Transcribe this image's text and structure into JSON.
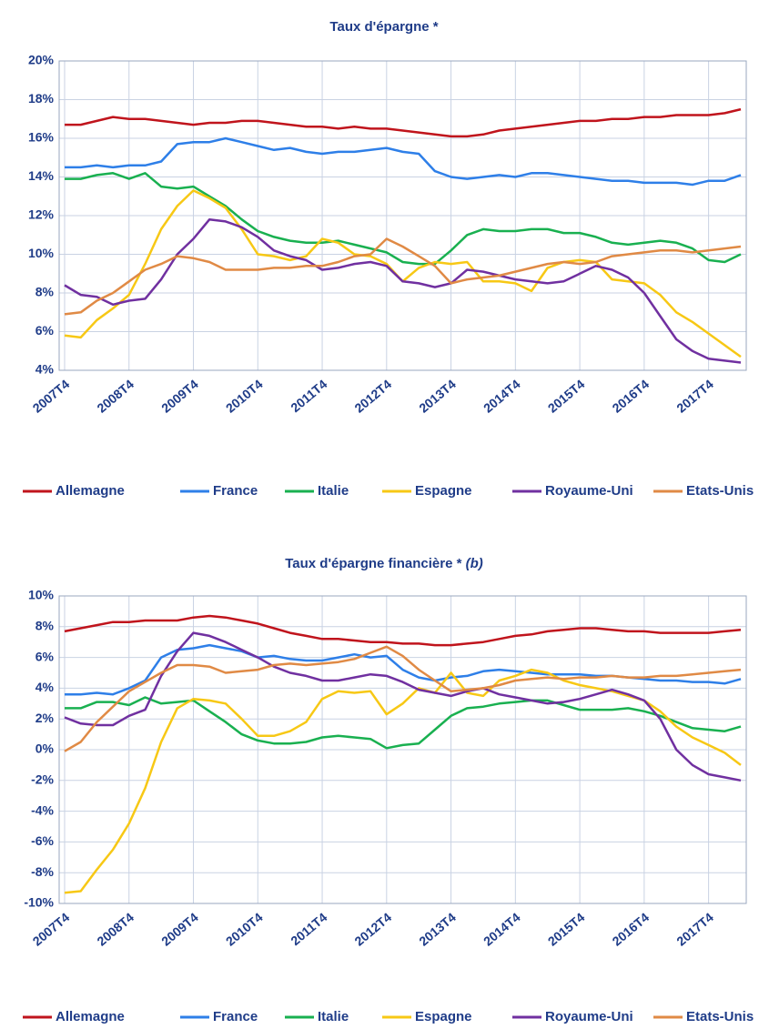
{
  "chart_data": [
    {
      "type": "line",
      "title": "Taux d'épargne *",
      "categories": [
        "2007T4",
        null,
        null,
        null,
        "2008T4",
        null,
        null,
        null,
        "2009T4",
        null,
        null,
        null,
        "2010T4",
        null,
        null,
        null,
        "2011T4",
        null,
        null,
        null,
        "2012T4",
        null,
        null,
        null,
        "2013T4",
        null,
        null,
        null,
        "2014T4",
        null,
        null,
        null,
        "2015T4",
        null,
        null,
        null,
        "2016T4",
        null,
        null,
        null,
        "2017T4",
        null,
        null
      ],
      "ylim": [
        4,
        20
      ],
      "yticks": [
        {
          "value": 4,
          "label": "4%"
        },
        {
          "value": 6,
          "label": "6%"
        },
        {
          "value": 8,
          "label": "8%"
        },
        {
          "value": 10,
          "label": "10%"
        },
        {
          "value": 12,
          "label": "12%"
        },
        {
          "value": 14,
          "label": "14%"
        },
        {
          "value": 16,
          "label": "16%"
        },
        {
          "value": 18,
          "label": "18%"
        },
        {
          "value": 20,
          "label": "20%"
        }
      ],
      "grid": true,
      "series": [
        {
          "name": "Allemagne",
          "color": "#c0141c",
          "values": [
            16.7,
            16.7,
            16.9,
            17.1,
            17.0,
            17.0,
            16.9,
            16.8,
            16.7,
            16.8,
            16.8,
            16.9,
            16.9,
            16.8,
            16.7,
            16.6,
            16.6,
            16.5,
            16.6,
            16.5,
            16.5,
            16.4,
            16.3,
            16.2,
            16.1,
            16.1,
            16.2,
            16.4,
            16.5,
            16.6,
            16.7,
            16.8,
            16.9,
            16.9,
            17.0,
            17.0,
            17.1,
            17.1,
            17.2,
            17.2,
            17.2,
            17.3,
            17.5
          ]
        },
        {
          "name": "France",
          "color": "#2e7fe8",
          "values": [
            14.5,
            14.5,
            14.6,
            14.5,
            14.6,
            14.6,
            14.8,
            15.7,
            15.8,
            15.8,
            16.0,
            15.8,
            15.6,
            15.4,
            15.5,
            15.3,
            15.2,
            15.3,
            15.3,
            15.4,
            15.5,
            15.3,
            15.2,
            14.3,
            14.0,
            13.9,
            14.0,
            14.1,
            14.0,
            14.2,
            14.2,
            14.1,
            14.0,
            13.9,
            13.8,
            13.8,
            13.7,
            13.7,
            13.7,
            13.6,
            13.8,
            13.8,
            14.1
          ]
        },
        {
          "name": "Italie",
          "color": "#19b050",
          "values": [
            13.9,
            13.9,
            14.1,
            14.2,
            13.9,
            14.2,
            13.5,
            13.4,
            13.5,
            13.0,
            12.5,
            11.8,
            11.2,
            10.9,
            10.7,
            10.6,
            10.6,
            10.7,
            10.5,
            10.3,
            10.1,
            9.6,
            9.5,
            9.5,
            10.2,
            11.0,
            11.3,
            11.2,
            11.2,
            11.3,
            11.3,
            11.1,
            11.1,
            10.9,
            10.6,
            10.5,
            10.6,
            10.7,
            10.6,
            10.3,
            9.7,
            9.6,
            10.0
          ]
        },
        {
          "name": "Espagne",
          "color": "#f7c815",
          "values": [
            5.8,
            5.7,
            6.6,
            7.2,
            7.9,
            9.5,
            11.3,
            12.5,
            13.3,
            12.9,
            12.4,
            11.3,
            10.0,
            9.9,
            9.7,
            9.9,
            10.8,
            10.6,
            10.0,
            9.9,
            9.5,
            8.6,
            9.3,
            9.6,
            9.5,
            9.6,
            8.6,
            8.6,
            8.5,
            8.1,
            9.3,
            9.6,
            9.7,
            9.6,
            8.7,
            8.6,
            8.5,
            7.9,
            7.0,
            6.5,
            5.9,
            5.3,
            4.7
          ]
        },
        {
          "name": "Royaume-Uni",
          "color": "#7030a0",
          "values": [
            8.4,
            7.9,
            7.8,
            7.4,
            7.6,
            7.7,
            8.7,
            10.0,
            10.8,
            11.8,
            11.7,
            11.4,
            10.9,
            10.2,
            9.9,
            9.7,
            9.2,
            9.3,
            9.5,
            9.6,
            9.4,
            8.6,
            8.5,
            8.3,
            8.5,
            9.2,
            9.1,
            8.9,
            8.7,
            8.6,
            8.5,
            8.6,
            9.0,
            9.4,
            9.2,
            8.8,
            8.0,
            6.8,
            5.6,
            5.0,
            4.6,
            4.5,
            4.4
          ]
        },
        {
          "name": "Etats-Unis",
          "color": "#e08a45",
          "values": [
            6.9,
            7.0,
            7.6,
            8.0,
            8.6,
            9.2,
            9.5,
            9.9,
            9.8,
            9.6,
            9.2,
            9.2,
            9.2,
            9.3,
            9.3,
            9.4,
            9.4,
            9.6,
            9.9,
            10.0,
            10.8,
            10.4,
            9.9,
            9.4,
            8.5,
            8.7,
            8.8,
            8.9,
            9.1,
            9.3,
            9.5,
            9.6,
            9.5,
            9.6,
            9.9,
            10.0,
            10.1,
            10.2,
            10.2,
            10.1,
            10.2,
            10.3,
            10.4
          ]
        }
      ]
    },
    {
      "type": "line",
      "title": "Taux d'épargne financière *",
      "title_note": "(b)",
      "categories": [
        "2007T4",
        null,
        null,
        null,
        "2008T4",
        null,
        null,
        null,
        "2009T4",
        null,
        null,
        null,
        "2010T4",
        null,
        null,
        null,
        "2011T4",
        null,
        null,
        null,
        "2012T4",
        null,
        null,
        null,
        "2013T4",
        null,
        null,
        null,
        "2014T4",
        null,
        null,
        null,
        "2015T4",
        null,
        null,
        null,
        "2016T4",
        null,
        null,
        null,
        "2017T4",
        null,
        null
      ],
      "ylim": [
        -10,
        10
      ],
      "yticks": [
        {
          "value": -10,
          "label": "-10%"
        },
        {
          "value": -8,
          "label": "-8%"
        },
        {
          "value": -6,
          "label": "-6%"
        },
        {
          "value": -4,
          "label": "-4%"
        },
        {
          "value": -2,
          "label": "-2%"
        },
        {
          "value": 0,
          "label": "0%"
        },
        {
          "value": 2,
          "label": "2%"
        },
        {
          "value": 4,
          "label": "4%"
        },
        {
          "value": 6,
          "label": "6%"
        },
        {
          "value": 8,
          "label": "8%"
        },
        {
          "value": 10,
          "label": "10%"
        }
      ],
      "grid": true,
      "series": [
        {
          "name": "Allemagne",
          "color": "#c0141c",
          "values": [
            7.7,
            7.9,
            8.1,
            8.3,
            8.3,
            8.4,
            8.4,
            8.4,
            8.6,
            8.7,
            8.6,
            8.4,
            8.2,
            7.9,
            7.6,
            7.4,
            7.2,
            7.2,
            7.1,
            7.0,
            7.0,
            6.9,
            6.9,
            6.8,
            6.8,
            6.9,
            7.0,
            7.2,
            7.4,
            7.5,
            7.7,
            7.8,
            7.9,
            7.9,
            7.8,
            7.7,
            7.7,
            7.6,
            7.6,
            7.6,
            7.6,
            7.7,
            7.8
          ]
        },
        {
          "name": "France",
          "color": "#2e7fe8",
          "values": [
            3.6,
            3.6,
            3.7,
            3.6,
            4.0,
            4.5,
            6.0,
            6.5,
            6.6,
            6.8,
            6.6,
            6.4,
            6.0,
            6.1,
            5.9,
            5.8,
            5.8,
            6.0,
            6.2,
            6.0,
            6.1,
            5.2,
            4.7,
            4.5,
            4.7,
            4.8,
            5.1,
            5.2,
            5.1,
            5.0,
            4.9,
            4.9,
            4.9,
            4.8,
            4.8,
            4.7,
            4.6,
            4.5,
            4.5,
            4.4,
            4.4,
            4.3,
            4.6
          ]
        },
        {
          "name": "Italie",
          "color": "#19b050",
          "values": [
            2.7,
            2.7,
            3.1,
            3.1,
            2.9,
            3.4,
            3.0,
            3.1,
            3.2,
            2.5,
            1.8,
            1.0,
            0.6,
            0.4,
            0.4,
            0.5,
            0.8,
            0.9,
            0.8,
            0.7,
            0.1,
            0.3,
            0.4,
            1.3,
            2.2,
            2.7,
            2.8,
            3.0,
            3.1,
            3.2,
            3.2,
            2.9,
            2.6,
            2.6,
            2.6,
            2.7,
            2.5,
            2.2,
            1.8,
            1.4,
            1.3,
            1.2,
            1.5
          ]
        },
        {
          "name": "Espagne",
          "color": "#f7c815",
          "values": [
            -9.3,
            -9.2,
            -7.8,
            -6.5,
            -4.8,
            -2.5,
            0.5,
            2.7,
            3.3,
            3.2,
            3.0,
            2.0,
            0.9,
            0.9,
            1.2,
            1.8,
            3.3,
            3.8,
            3.7,
            3.8,
            2.3,
            3.0,
            4.0,
            3.7,
            5.0,
            3.7,
            3.5,
            4.5,
            4.8,
            5.2,
            5.0,
            4.5,
            4.2,
            4.0,
            3.8,
            3.5,
            3.2,
            2.5,
            1.5,
            0.8,
            0.3,
            -0.2,
            -1.0
          ]
        },
        {
          "name": "Royaume-Uni",
          "color": "#7030a0",
          "values": [
            2.1,
            1.7,
            1.6,
            1.6,
            2.2,
            2.6,
            4.8,
            6.4,
            7.6,
            7.4,
            7.0,
            6.5,
            6.0,
            5.4,
            5.0,
            4.8,
            4.5,
            4.5,
            4.7,
            4.9,
            4.8,
            4.4,
            3.9,
            3.7,
            3.5,
            3.8,
            4.0,
            3.6,
            3.4,
            3.2,
            3.0,
            3.1,
            3.3,
            3.6,
            3.9,
            3.6,
            3.2,
            2.0,
            0.0,
            -1.0,
            -1.6,
            -1.8,
            -2.0
          ]
        },
        {
          "name": "Etats-Unis",
          "color": "#e08a45",
          "values": [
            -0.1,
            0.5,
            1.8,
            2.8,
            3.8,
            4.4,
            5.0,
            5.5,
            5.5,
            5.4,
            5.0,
            5.1,
            5.2,
            5.5,
            5.6,
            5.5,
            5.6,
            5.7,
            5.9,
            6.3,
            6.7,
            6.1,
            5.2,
            4.5,
            3.8,
            3.9,
            4.0,
            4.2,
            4.5,
            4.6,
            4.7,
            4.6,
            4.7,
            4.7,
            4.8,
            4.7,
            4.7,
            4.8,
            4.8,
            4.9,
            5.0,
            5.1,
            5.2
          ]
        }
      ]
    }
  ]
}
